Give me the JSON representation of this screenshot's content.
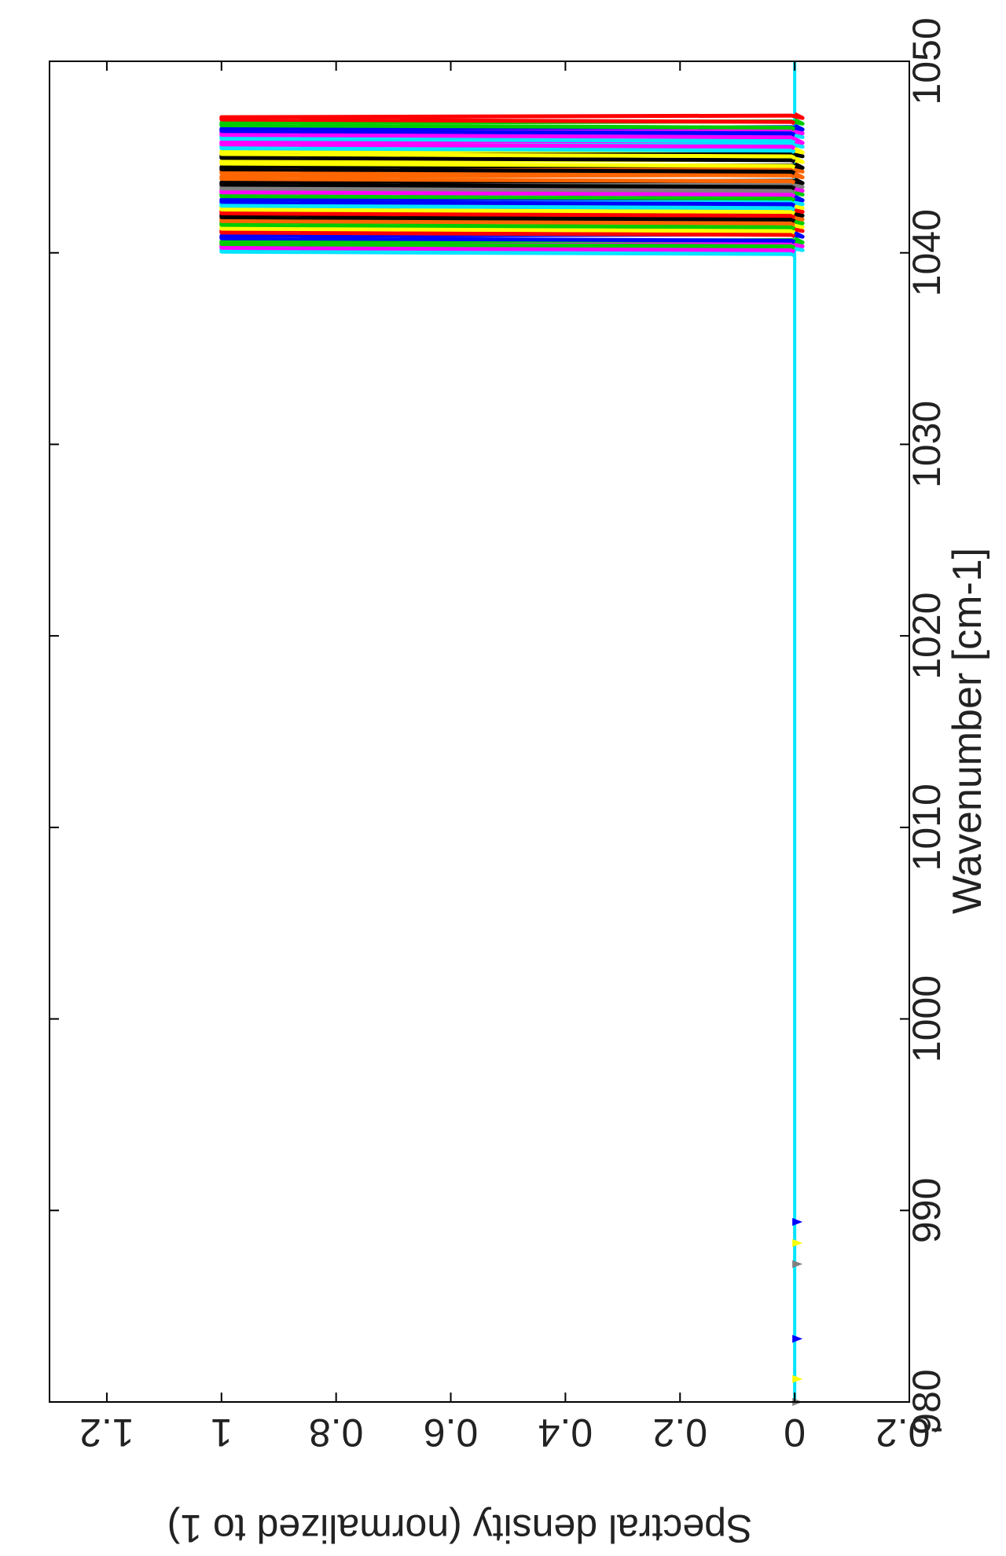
{
  "chart_data": {
    "type": "line",
    "orientation": "rotated-90-clockwise",
    "xlabel": "Wavenumber [cm-1]",
    "ylabel": "Spectral density (normalized to 1)",
    "xlim": [
      980,
      1050
    ],
    "ylim": [
      -0.2,
      1.3
    ],
    "x_ticks": [
      "980",
      "990",
      "1000",
      "1010",
      "1020",
      "1030",
      "1040",
      "1050"
    ],
    "y_ticks": [
      "-0.2",
      "0",
      "0.2",
      "0.4",
      "0.6",
      "0.8",
      "1",
      "1.2"
    ],
    "grid": false,
    "legend": "peak labels (unreadable, mirrored) next to each peak",
    "baseline": 0,
    "peak_height": 1,
    "series": [
      {
        "x": 1040.1,
        "color": "#00e5ff"
      },
      {
        "x": 1040.3,
        "color": "#ff00ff"
      },
      {
        "x": 1040.5,
        "color": "#00cc00"
      },
      {
        "x": 1040.8,
        "color": "#0000ff"
      },
      {
        "x": 1041.1,
        "color": "#ff0000"
      },
      {
        "x": 1041.3,
        "color": "#ffff00"
      },
      {
        "x": 1041.5,
        "color": "#00cc00"
      },
      {
        "x": 1041.7,
        "color": "#ff6600"
      },
      {
        "x": 1041.9,
        "color": "#000000"
      },
      {
        "x": 1042.1,
        "color": "#ff0000"
      },
      {
        "x": 1042.3,
        "color": "#ffff00"
      },
      {
        "x": 1042.5,
        "color": "#00e5ff"
      },
      {
        "x": 1042.7,
        "color": "#0000ff"
      },
      {
        "x": 1043.0,
        "color": "#00cc00"
      },
      {
        "x": 1043.2,
        "color": "#ff00ff"
      },
      {
        "x": 1043.4,
        "color": "#808080"
      },
      {
        "x": 1043.6,
        "color": "#000000"
      },
      {
        "x": 1043.9,
        "color": "#ff6600"
      },
      {
        "x": 1044.2,
        "color": "#ff6600"
      },
      {
        "x": 1044.4,
        "color": "#000000"
      },
      {
        "x": 1044.7,
        "color": "#ffff00"
      },
      {
        "x": 1045.0,
        "color": "#000000"
      },
      {
        "x": 1045.2,
        "color": "#ffff00"
      },
      {
        "x": 1045.5,
        "color": "#00e5ff"
      },
      {
        "x": 1045.7,
        "color": "#ff00ff"
      },
      {
        "x": 1046.0,
        "color": "#00e5ff"
      },
      {
        "x": 1046.2,
        "color": "#ff00ff"
      },
      {
        "x": 1046.4,
        "color": "#0000ff"
      },
      {
        "x": 1046.7,
        "color": "#00cc00"
      },
      {
        "x": 1047.0,
        "color": "#ff0000"
      }
    ],
    "low_features": [
      {
        "x": 980.0,
        "color": "#808080"
      },
      {
        "x": 981.2,
        "color": "#ffff00"
      },
      {
        "x": 983.3,
        "color": "#0000ff"
      },
      {
        "x": 987.2,
        "color": "#808080"
      },
      {
        "x": 988.3,
        "color": "#ffff00"
      },
      {
        "x": 989.4,
        "color": "#0000ff"
      }
    ]
  }
}
